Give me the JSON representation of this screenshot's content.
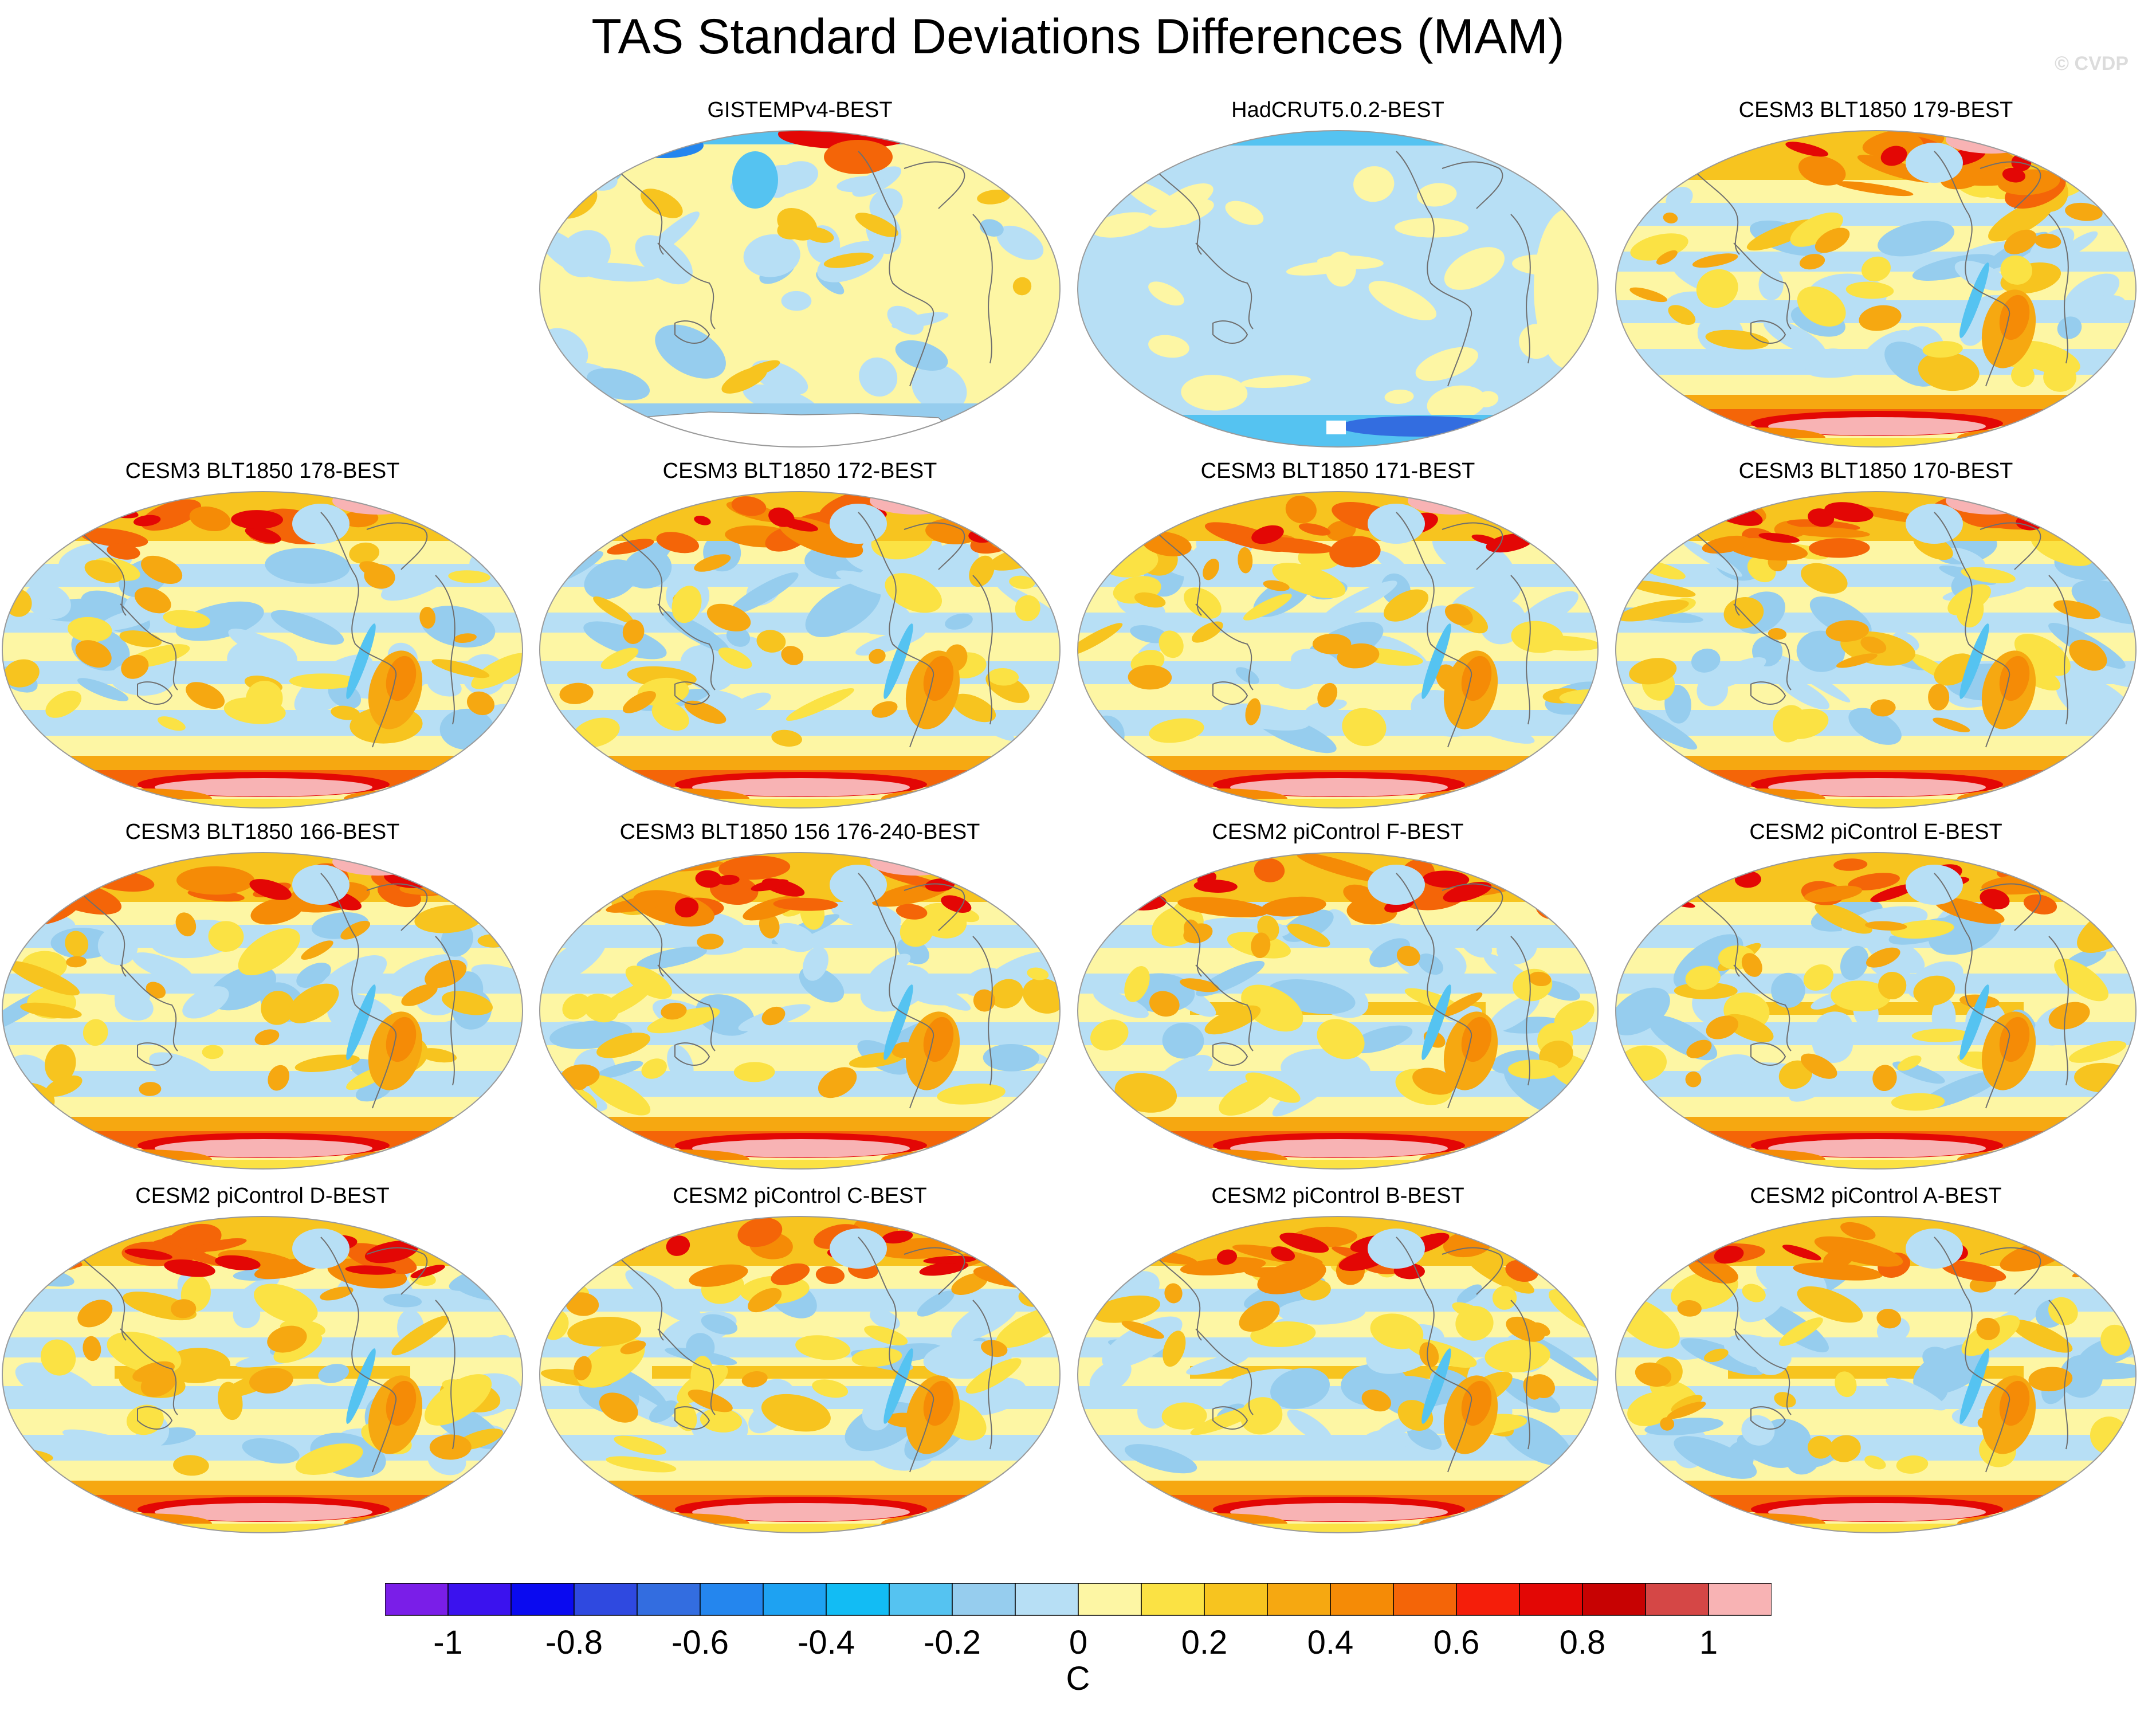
{
  "title": "TAS Standard Deviations Differences (MAM)",
  "watermark": "© CVDP",
  "panels": [
    {
      "title": "GISTEMPv4-BEST",
      "style": "obs1"
    },
    {
      "title": "HadCRUT5.0.2-BEST",
      "style": "obs2"
    },
    {
      "title": "CESM3 BLT1850 179-BEST",
      "style": "cesm3"
    },
    {
      "title": "CESM3 BLT1850 178-BEST",
      "style": "cesm3"
    },
    {
      "title": "CESM3 BLT1850 172-BEST",
      "style": "cesm3"
    },
    {
      "title": "CESM3 BLT1850 171-BEST",
      "style": "cesm3"
    },
    {
      "title": "CESM3 BLT1850 170-BEST",
      "style": "cesm3"
    },
    {
      "title": "CESM3 BLT1850 166-BEST",
      "style": "cesm3"
    },
    {
      "title": "CESM3 BLT1850 156 176-240-BEST",
      "style": "cesm3"
    },
    {
      "title": "CESM2 piControl F-BEST",
      "style": "cesm2"
    },
    {
      "title": "CESM2 piControl E-BEST",
      "style": "cesm2"
    },
    {
      "title": "CESM2 piControl D-BEST",
      "style": "cesm2"
    },
    {
      "title": "CESM2 piControl C-BEST",
      "style": "cesm2"
    },
    {
      "title": "CESM2 piControl B-BEST",
      "style": "cesm2"
    },
    {
      "title": "CESM2 piControl A-BEST",
      "style": "cesm2"
    }
  ],
  "colorbar": {
    "units": "C",
    "colors": [
      "#7a1ee8",
      "#3b12ee",
      "#0a0af0",
      "#2f49e0",
      "#336de0",
      "#2486ee",
      "#1ea2f2",
      "#12bcf4",
      "#55c3f1",
      "#96cdee",
      "#b7dff5",
      "#fdf6a4",
      "#fbe244",
      "#f7c41f",
      "#f6a811",
      "#f58b06",
      "#f46508",
      "#f51e0a",
      "#e30705",
      "#c70202",
      "#d54746",
      "#f8b3b4"
    ],
    "tick_labels": [
      "-1",
      "-0.8",
      "-0.6",
      "-0.4",
      "-0.2",
      "0",
      "0.2",
      "0.4",
      "0.6",
      "0.8",
      "1"
    ]
  }
}
